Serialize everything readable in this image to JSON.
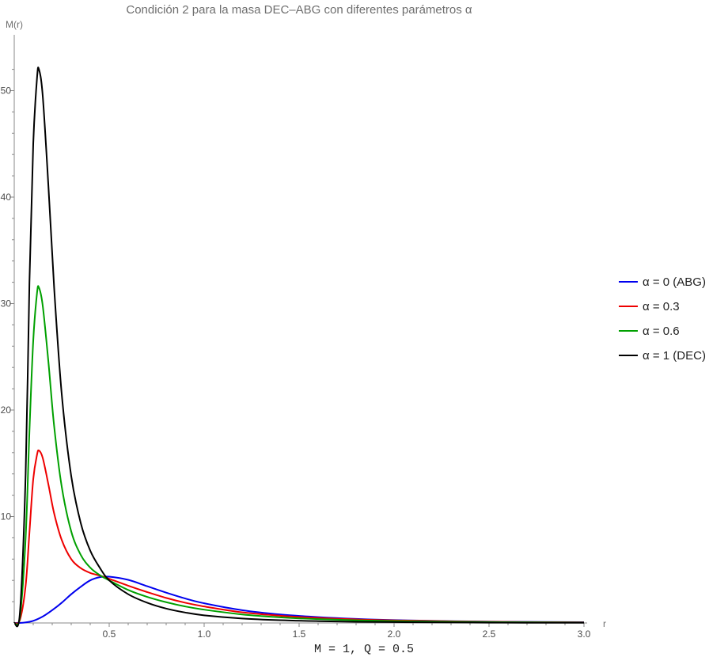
{
  "chart_data": {
    "type": "line",
    "title": "Condición 2 para la masa DEC–ABG con diferentes parámetros α",
    "xlabel": "r",
    "ylabel": "M(r)",
    "footer": "M = 1, Q = 0.5",
    "xlim": [
      0,
      3.0
    ],
    "ylim": [
      0,
      54
    ],
    "x_ticks": [
      0.5,
      1.0,
      1.5,
      2.0,
      2.5,
      3.0
    ],
    "x_tick_labels": [
      "0.5",
      "1.0",
      "1.5",
      "2.0",
      "2.5",
      "3.0"
    ],
    "y_ticks": [
      10,
      20,
      30,
      40,
      50
    ],
    "y_tick_labels": [
      "10",
      "20",
      "30",
      "40",
      "50"
    ],
    "legend_position": "right",
    "series": [
      {
        "name": "α = 0 (ABG)",
        "color": "#0000ee",
        "points": [
          [
            0.0,
            0
          ],
          [
            0.05,
            0.03
          ],
          [
            0.1,
            0.2
          ],
          [
            0.15,
            0.6
          ],
          [
            0.2,
            1.2
          ],
          [
            0.25,
            1.9
          ],
          [
            0.3,
            2.7
          ],
          [
            0.35,
            3.4
          ],
          [
            0.4,
            4.0
          ],
          [
            0.45,
            4.3
          ],
          [
            0.5,
            4.35
          ],
          [
            0.6,
            4.05
          ],
          [
            0.7,
            3.45
          ],
          [
            0.8,
            2.85
          ],
          [
            0.9,
            2.3
          ],
          [
            1.0,
            1.85
          ],
          [
            1.2,
            1.2
          ],
          [
            1.4,
            0.8
          ],
          [
            1.6,
            0.55
          ],
          [
            1.8,
            0.38
          ],
          [
            2.0,
            0.27
          ],
          [
            2.3,
            0.17
          ],
          [
            2.6,
            0.11
          ],
          [
            3.0,
            0.07
          ]
        ]
      },
      {
        "name": "α = 0.3",
        "color": "#ee0000",
        "points": [
          [
            0.0,
            0
          ],
          [
            0.03,
            0.3
          ],
          [
            0.06,
            3.5
          ],
          [
            0.08,
            8.5
          ],
          [
            0.1,
            13.5
          ],
          [
            0.12,
            15.8
          ],
          [
            0.13,
            16.2
          ],
          [
            0.15,
            15.5
          ],
          [
            0.18,
            13.0
          ],
          [
            0.21,
            10.3
          ],
          [
            0.25,
            7.8
          ],
          [
            0.3,
            6.0
          ],
          [
            0.35,
            5.15
          ],
          [
            0.4,
            4.7
          ],
          [
            0.45,
            4.45
          ],
          [
            0.5,
            4.15
          ],
          [
            0.6,
            3.5
          ],
          [
            0.7,
            2.9
          ],
          [
            0.8,
            2.35
          ],
          [
            0.9,
            1.9
          ],
          [
            1.0,
            1.55
          ],
          [
            1.2,
            1.0
          ],
          [
            1.4,
            0.68
          ],
          [
            1.6,
            0.47
          ],
          [
            1.8,
            0.33
          ],
          [
            2.0,
            0.24
          ],
          [
            2.5,
            0.11
          ],
          [
            3.0,
            0.06
          ]
        ]
      },
      {
        "name": "α = 0.6",
        "color": "#00a000",
        "points": [
          [
            0.0,
            0
          ],
          [
            0.03,
            0.6
          ],
          [
            0.06,
            8.0
          ],
          [
            0.08,
            18.0
          ],
          [
            0.1,
            26.5
          ],
          [
            0.12,
            31.0
          ],
          [
            0.13,
            31.5
          ],
          [
            0.15,
            29.8
          ],
          [
            0.18,
            24.5
          ],
          [
            0.21,
            18.5
          ],
          [
            0.25,
            12.8
          ],
          [
            0.3,
            8.6
          ],
          [
            0.35,
            6.4
          ],
          [
            0.4,
            5.2
          ],
          [
            0.45,
            4.5
          ],
          [
            0.5,
            4.0
          ],
          [
            0.6,
            3.1
          ],
          [
            0.7,
            2.45
          ],
          [
            0.8,
            1.95
          ],
          [
            0.9,
            1.55
          ],
          [
            1.0,
            1.25
          ],
          [
            1.2,
            0.8
          ],
          [
            1.4,
            0.53
          ],
          [
            1.6,
            0.36
          ],
          [
            1.8,
            0.25
          ],
          [
            2.0,
            0.18
          ],
          [
            2.5,
            0.08
          ],
          [
            3.0,
            0.04
          ]
        ]
      },
      {
        "name": "α = 1 (DEC)",
        "color": "#000000",
        "points": [
          [
            0.0,
            0
          ],
          [
            0.03,
            1.0
          ],
          [
            0.06,
            14.0
          ],
          [
            0.08,
            32.0
          ],
          [
            0.1,
            45.0
          ],
          [
            0.12,
            51.2
          ],
          [
            0.13,
            52.0
          ],
          [
            0.15,
            49.5
          ],
          [
            0.18,
            41.0
          ],
          [
            0.21,
            31.5
          ],
          [
            0.25,
            21.5
          ],
          [
            0.3,
            13.8
          ],
          [
            0.35,
            9.4
          ],
          [
            0.4,
            6.8
          ],
          [
            0.45,
            5.2
          ],
          [
            0.5,
            4.0
          ],
          [
            0.6,
            2.7
          ],
          [
            0.7,
            1.9
          ],
          [
            0.8,
            1.35
          ],
          [
            0.9,
            0.98
          ],
          [
            1.0,
            0.72
          ],
          [
            1.2,
            0.42
          ],
          [
            1.4,
            0.26
          ],
          [
            1.6,
            0.17
          ],
          [
            1.8,
            0.11
          ],
          [
            2.0,
            0.08
          ],
          [
            2.5,
            0.03
          ],
          [
            3.0,
            0.015
          ]
        ]
      }
    ]
  }
}
